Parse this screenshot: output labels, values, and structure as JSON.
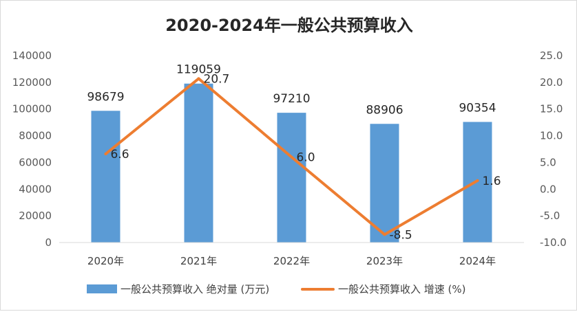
{
  "chart_data": {
    "type": "bar",
    "title": "2020-2024年一般公共预算收入",
    "categories": [
      "2020年",
      "2021年",
      "2022年",
      "2023年",
      "2024年"
    ],
    "series": [
      {
        "name": "一般公共预算收入 绝对量 (万元)",
        "kind": "bar",
        "axis": "left",
        "color": "#5b9bd5",
        "values": [
          98679,
          119059,
          97210,
          88906,
          90354
        ]
      },
      {
        "name": "一般公共预算收入 增速 (%)",
        "kind": "line",
        "axis": "right",
        "color": "#ed7d31",
        "values": [
          6.6,
          20.7,
          6.0,
          -8.5,
          1.6
        ]
      }
    ],
    "bar_labels": [
      "98679",
      "119059",
      "97210",
      "88906",
      "90354"
    ],
    "line_labels": [
      "6.6",
      "20.7",
      "6.0",
      "-8.5",
      "1.6"
    ],
    "y_left": {
      "min": 0,
      "max": 140000,
      "ticks": [
        "0",
        "20000",
        "40000",
        "60000",
        "80000",
        "100000",
        "120000",
        "140000"
      ]
    },
    "y_right": {
      "min": -10,
      "max": 25,
      "ticks": [
        "-10.0",
        "-5.0",
        "0.0",
        "5.0",
        "10.0",
        "15.0",
        "20.0",
        "25.0"
      ]
    },
    "grid": false,
    "legend_position": "bottom"
  }
}
